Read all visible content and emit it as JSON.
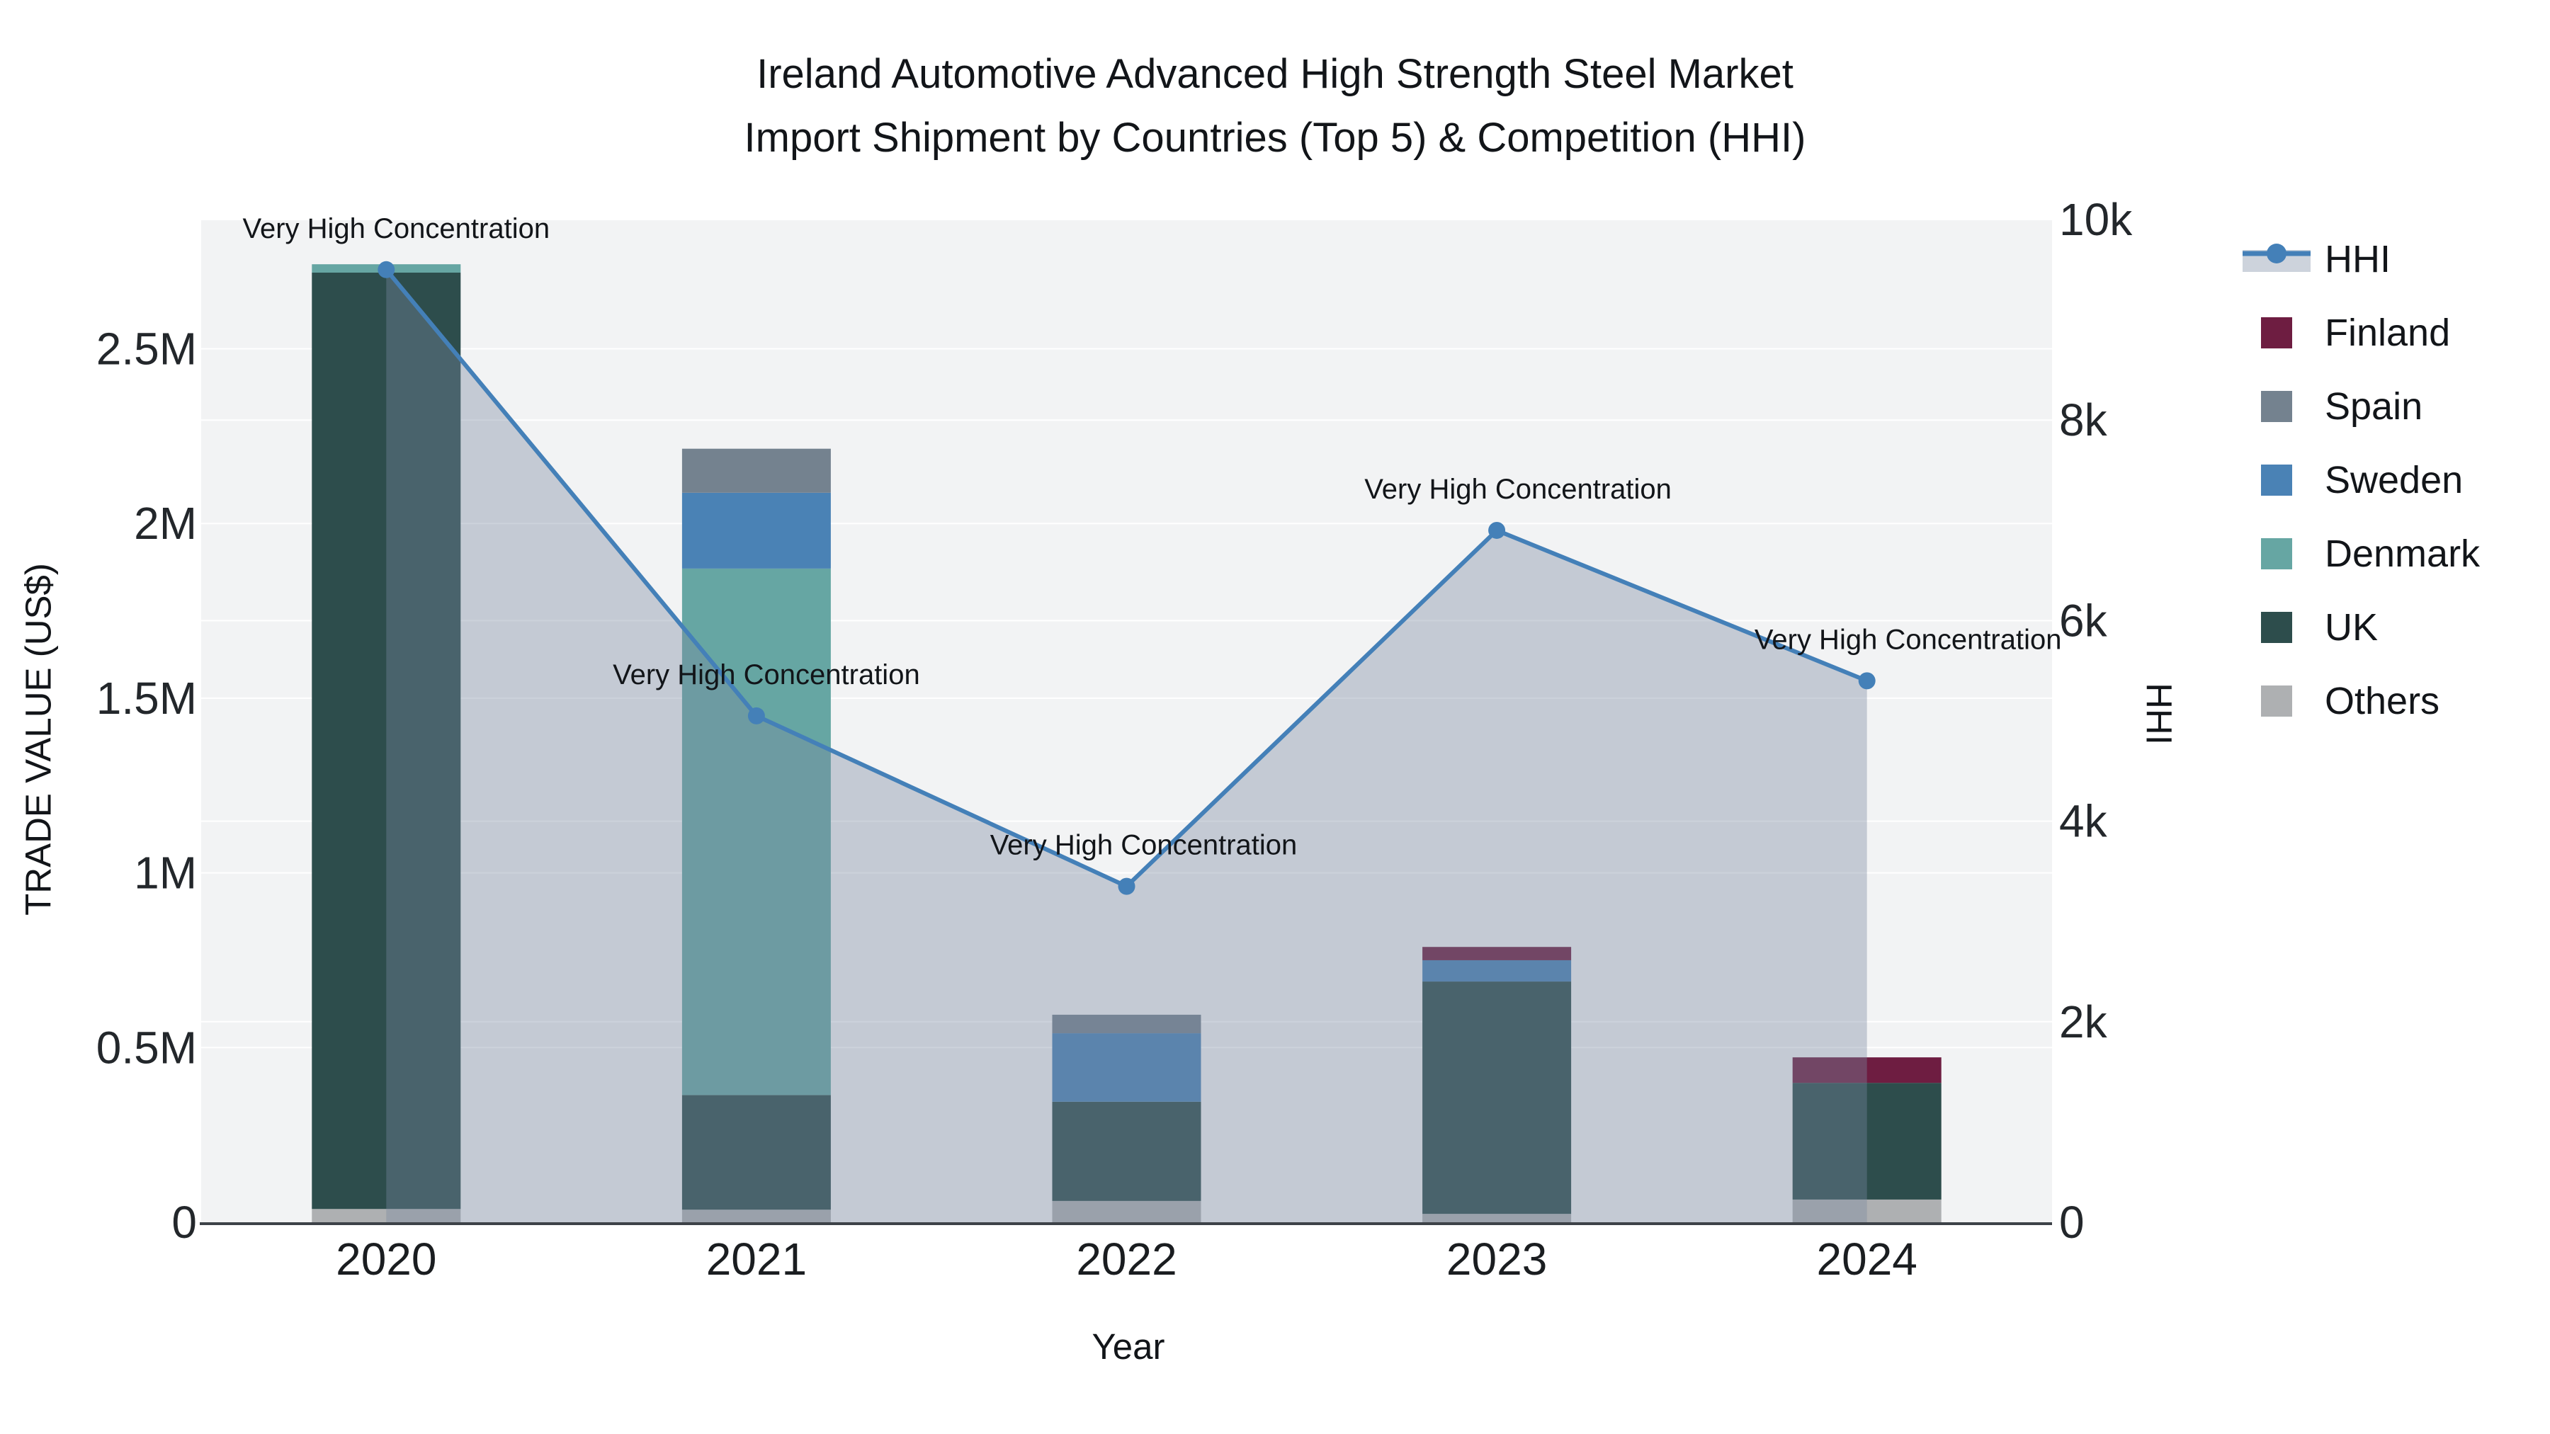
{
  "title": {
    "line1": "Ireland Automotive Advanced High Strength Steel Market",
    "line2": "Import Shipment by Countries (Top 5) & Competition (HHI)"
  },
  "x_axis": {
    "title": "Year",
    "labels": [
      "2020",
      "2021",
      "2022",
      "2023",
      "2024"
    ]
  },
  "y_left": {
    "title": "TRADE VALUE (US$)",
    "tick_labels": [
      "0",
      "0.5M",
      "1M",
      "1.5M",
      "2M",
      "2.5M"
    ],
    "tick_values": [
      0,
      500000,
      1000000,
      1500000,
      2000000,
      2500000
    ]
  },
  "y_right": {
    "title": "HHI",
    "tick_labels": [
      "0",
      "2k",
      "4k",
      "6k",
      "8k",
      "10k"
    ],
    "tick_values": [
      0,
      2000,
      4000,
      6000,
      8000,
      10000
    ]
  },
  "legend": {
    "order": [
      "HHI",
      "Finland",
      "Spain",
      "Sweden",
      "Denmark",
      "UK",
      "Others"
    ]
  },
  "colors": {
    "hhi_line": "#4480b8",
    "hhi_fill": "rgba(122,138,160,0.38)",
    "hhi_legend_band": "#cdd3dc",
    "plot_bg": "#f2f3f4",
    "grid": "#ffffff",
    "axis_line": "#3d4248",
    "text": "#121519"
  },
  "chart_data": {
    "type": "bar",
    "subtype": "stacked-bars-with-line-area",
    "categories": [
      "2020",
      "2021",
      "2022",
      "2023",
      "2024"
    ],
    "bar_value_unit": "US$ trade value",
    "stack_order": "bottom to top as listed",
    "series": [
      {
        "name": "Others",
        "color": "#aeb0b2",
        "values": [
          38000,
          36000,
          61000,
          24000,
          65000
        ]
      },
      {
        "name": "UK",
        "color": "#2d4d4c",
        "values": [
          2680000,
          328000,
          284000,
          665000,
          334000
        ]
      },
      {
        "name": "Denmark",
        "color": "#66a6a3",
        "values": [
          24000,
          1507000,
          0,
          0,
          0
        ]
      },
      {
        "name": "Sweden",
        "color": "#4a82b5",
        "values": [
          0,
          217000,
          196000,
          61000,
          0
        ]
      },
      {
        "name": "Spain",
        "color": "#74828f",
        "values": [
          0,
          126000,
          53000,
          0,
          0
        ]
      },
      {
        "name": "Finland",
        "color": "#6e1d41",
        "values": [
          0,
          0,
          0,
          38000,
          73000
        ]
      }
    ],
    "line_series": {
      "name": "HHI",
      "axis": "right",
      "area_fill": true,
      "values": [
        9500,
        5050,
        3350,
        6900,
        5400
      ]
    },
    "annotations": [
      {
        "x": "2020",
        "text": "Very High Concentration"
      },
      {
        "x": "2021",
        "text": "Very High Concentration"
      },
      {
        "x": "2022",
        "text": "Very High Concentration"
      },
      {
        "x": "2023",
        "text": "Very High Concentration"
      },
      {
        "x": "2024",
        "text": "Very High Concentration"
      }
    ],
    "y_left_range": [
      0,
      2870000
    ],
    "y_right_range": [
      0,
      10000
    ],
    "grid": true,
    "legend_position": "right"
  }
}
